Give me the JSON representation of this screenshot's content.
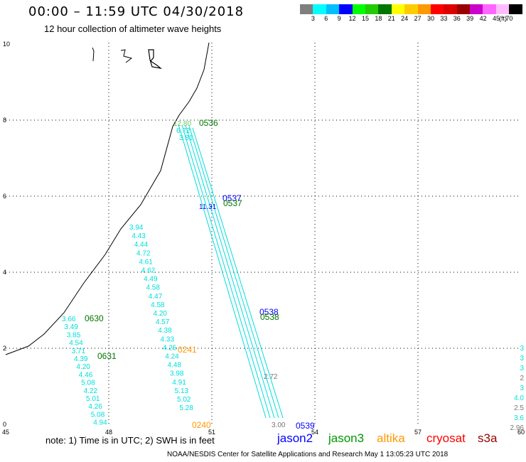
{
  "header": {
    "title": "00:00 – 11:59 UTC 04/30/2018",
    "subtitle": "12 hour collection of altimeter wave heights"
  },
  "legend": {
    "colors": [
      "#7f7f7f",
      "#00ffff",
      "#00bfff",
      "#0000ff",
      "#00ff00",
      "#22cc00",
      "#007700",
      "#ffff00",
      "#ffcc00",
      "#ff9900",
      "#ff0000",
      "#dd0000",
      "#990000",
      "#cc00cc",
      "#ff66ff",
      "#ffbbff",
      "#000000"
    ],
    "labels": [
      "3",
      "6",
      "9",
      "12",
      "15",
      "18",
      "21",
      "24",
      "27",
      "30",
      "33",
      "36",
      "39",
      "42",
      "45",
      "70"
    ],
    "unit": "(ft)"
  },
  "axes": {
    "x_ticks": [
      "45",
      "48",
      "51",
      "54",
      "57",
      "60"
    ],
    "y_ticks": [
      "0",
      "2",
      "4",
      "6",
      "8",
      "10"
    ]
  },
  "track_labels": [
    {
      "text": "0536",
      "color": "#007700"
    },
    {
      "text": "0537",
      "color": "#0000ff"
    },
    {
      "text": "0537",
      "color": "#007700"
    },
    {
      "text": "0538",
      "color": "#0000ff"
    },
    {
      "text": "0538",
      "color": "#007700"
    },
    {
      "text": "0539",
      "color": "#0000ff"
    },
    {
      "text": "0630",
      "color": "#007700"
    },
    {
      "text": "0631",
      "color": "#007700"
    },
    {
      "text": "0241",
      "color": "#ff9900"
    },
    {
      "text": "0240",
      "color": "#ff9900"
    }
  ],
  "tracks": {
    "left_column": [
      "3.66",
      "3.49",
      "3.85",
      "4.54",
      "3.71",
      "4.39",
      "4.20",
      "4.46",
      "5.08",
      "4.22",
      "5.01",
      "4.26",
      "5.08",
      "4.94"
    ],
    "middle_column": [
      "3.94",
      "4.43",
      "4.44",
      "4.72",
      "4.61",
      "4.62",
      "4.49",
      "4.58",
      "4.47",
      "4.58",
      "4.20",
      "4.57",
      "4.38",
      "4.33",
      "4.25",
      "4.24",
      "4.48",
      "3.98",
      "4.91",
      "5.13",
      "5.02",
      "5.28"
    ],
    "diagonal_top": [
      "12.80",
      "6.72",
      "3.81"
    ],
    "diagonal_blue": "11.31",
    "diagonal_gray": "2.72",
    "diagonal_bottom": "3.00",
    "right_edge": [
      "3",
      "3",
      "3",
      "2",
      "3",
      "4.0",
      "2.5",
      "3.6",
      "2.96"
    ]
  },
  "footer": {
    "note": "note: 1) Time is in UTC; 2) SWH is in feet",
    "satellites": [
      {
        "name": "jason2",
        "color": "#0000ff"
      },
      {
        "name": "jason3",
        "color": "#009900"
      },
      {
        "name": "altika",
        "color": "#ff9900"
      },
      {
        "name": "cryosat",
        "color": "#ff0000"
      },
      {
        "name": "s3a",
        "color": "#990000"
      }
    ],
    "credit": "NOAA/NESDIS Center for Satellite Applications and Research    May  1 13:05:23 UTC 2018"
  }
}
